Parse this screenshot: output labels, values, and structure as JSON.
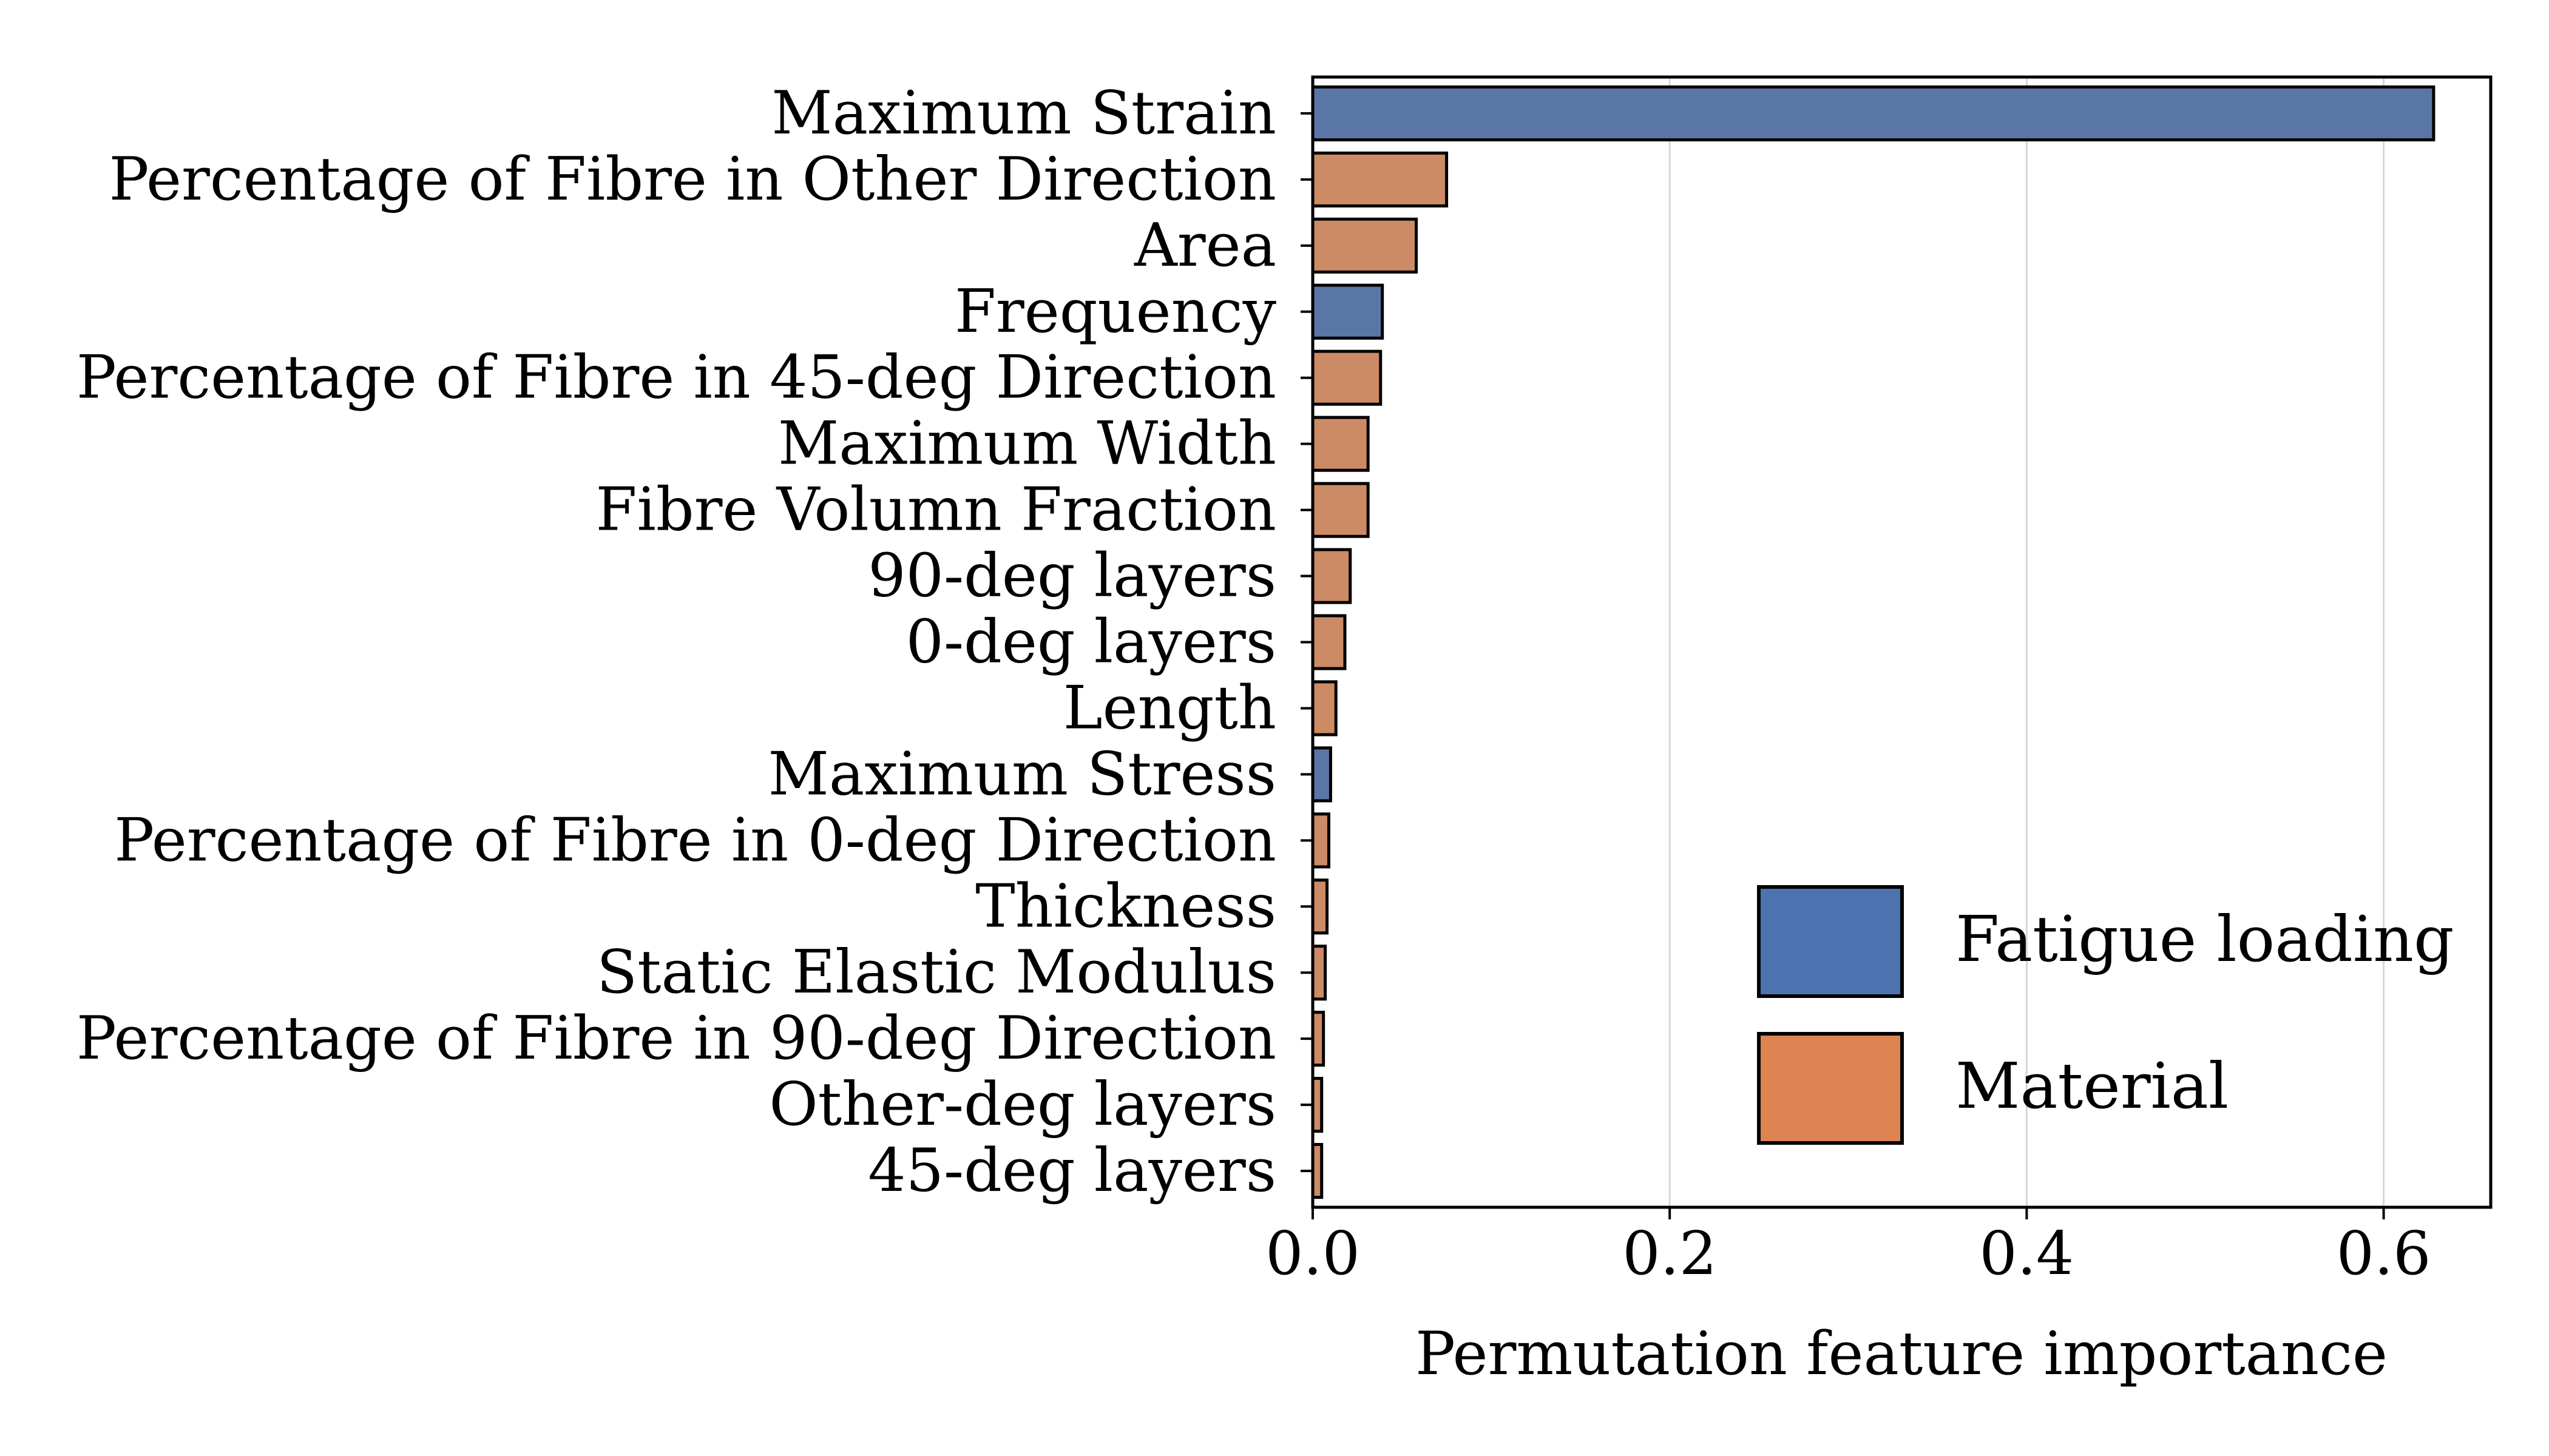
{
  "chart_data": {
    "type": "bar",
    "orientation": "horizontal",
    "xlabel": "Permutation feature importance",
    "ylabel": "",
    "xlim": [
      0,
      0.66
    ],
    "x_ticks": [
      "0.0",
      "0.2",
      "0.4",
      "0.6"
    ],
    "grid": "vertical",
    "legend_position": "lower-right",
    "categories": [
      "Maximum Strain",
      "Percentage of Fibre in Other Direction",
      "Area",
      "Frequency",
      "Percentage of Fibre in 45-deg Direction",
      "Maximum Width",
      "Fibre Volumn Fraction",
      "90-deg layers",
      "0-deg layers",
      "Length",
      "Maximum Stress",
      "Percentage of Fibre in 0-deg Direction",
      "Thickness",
      "Static Elastic Modulus",
      "Percentage of Fibre in 90-deg Direction",
      "Other-deg layers",
      "45-deg layers"
    ],
    "values": [
      0.628,
      0.075,
      0.058,
      0.039,
      0.038,
      0.031,
      0.031,
      0.021,
      0.018,
      0.013,
      0.01,
      0.009,
      0.008,
      0.007,
      0.006,
      0.005,
      0.005
    ],
    "groups": [
      "Fatigue loading",
      "Material",
      "Material",
      "Fatigue loading",
      "Material",
      "Material",
      "Material",
      "Material",
      "Material",
      "Material",
      "Fatigue loading",
      "Material",
      "Material",
      "Material",
      "Material",
      "Material",
      "Material"
    ],
    "legend": [
      {
        "name": "Fatigue loading",
        "color": "#4c72b0"
      },
      {
        "name": "Material",
        "color": "#dd8452"
      }
    ],
    "bar_colors": {
      "Fatigue loading": "#5a76a6",
      "Material": "#cc8a65"
    }
  }
}
